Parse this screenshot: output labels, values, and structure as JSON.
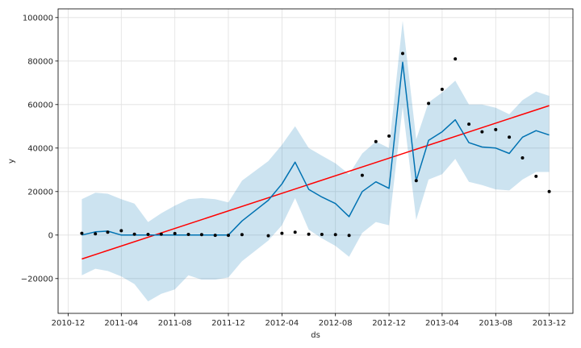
{
  "chart_data": {
    "type": "line",
    "xlabel": "ds",
    "ylabel": "y",
    "x_ticks": [
      "2010-12",
      "2011-04",
      "2011-08",
      "2011-12",
      "2012-04",
      "2012-08",
      "2012-12",
      "2013-04",
      "2013-08",
      "2013-12"
    ],
    "y_ticks": [
      -20000,
      0,
      20000,
      40000,
      60000,
      80000,
      100000
    ],
    "y_tick_labels": [
      "−20000",
      "0",
      "20000",
      "40000",
      "60000",
      "80000",
      "100000"
    ],
    "xlim": [
      "2010-11-08",
      "2014-01-24"
    ],
    "ylim": [
      -36000,
      104000
    ],
    "grid": true,
    "colors": {
      "observed": "#000000",
      "forecast": "#0072b2",
      "interval": "#0072b2",
      "trend": "#ff0000"
    },
    "observed": [
      [
        "2011-01-01",
        800
      ],
      [
        "2011-02-01",
        600
      ],
      [
        "2011-03-01",
        1300
      ],
      [
        "2011-04-01",
        2000
      ],
      [
        "2011-05-01",
        400
      ],
      [
        "2011-06-01",
        300
      ],
      [
        "2011-07-01",
        400
      ],
      [
        "2011-08-01",
        700
      ],
      [
        "2011-09-01",
        300
      ],
      [
        "2011-10-01",
        200
      ],
      [
        "2011-11-01",
        -100
      ],
      [
        "2011-12-01",
        -100
      ],
      [
        "2012-01-01",
        200
      ],
      [
        "2012-03-01",
        -300
      ],
      [
        "2012-04-01",
        800
      ],
      [
        "2012-05-01",
        1300
      ],
      [
        "2012-06-01",
        400
      ],
      [
        "2012-07-01",
        300
      ],
      [
        "2012-08-01",
        200
      ],
      [
        "2012-09-01",
        -200
      ],
      [
        "2012-10-01",
        27500
      ],
      [
        "2012-11-01",
        43000
      ],
      [
        "2012-12-01",
        45500
      ],
      [
        "2013-01-01",
        83500
      ],
      [
        "2013-02-01",
        25000
      ],
      [
        "2013-03-01",
        60500
      ],
      [
        "2013-04-01",
        67000
      ],
      [
        "2013-05-01",
        81000
      ],
      [
        "2013-06-01",
        51000
      ],
      [
        "2013-07-01",
        47500
      ],
      [
        "2013-08-01",
        48500
      ],
      [
        "2013-09-01",
        45000
      ],
      [
        "2013-10-01",
        35500
      ],
      [
        "2013-11-01",
        27000
      ],
      [
        "2013-12-01",
        20000
      ]
    ],
    "forecast": [
      [
        "2011-01-01",
        0
      ],
      [
        "2011-02-01",
        1500
      ],
      [
        "2011-03-01",
        1800
      ],
      [
        "2011-04-01",
        0
      ],
      [
        "2011-05-01",
        0
      ],
      [
        "2011-06-01",
        0
      ],
      [
        "2011-07-01",
        0
      ],
      [
        "2011-08-01",
        0
      ],
      [
        "2011-09-01",
        0
      ],
      [
        "2011-10-01",
        0
      ],
      [
        "2011-11-01",
        0
      ],
      [
        "2011-12-01",
        0
      ],
      [
        "2012-01-01",
        6500
      ],
      [
        "2012-03-01",
        16000
      ],
      [
        "2012-04-01",
        23500
      ],
      [
        "2012-05-01",
        33500
      ],
      [
        "2012-06-01",
        21000
      ],
      [
        "2012-07-01",
        17500
      ],
      [
        "2012-08-01",
        14500
      ],
      [
        "2012-09-01",
        8500
      ],
      [
        "2012-10-01",
        20000
      ],
      [
        "2012-11-01",
        24500
      ],
      [
        "2012-12-01",
        21500
      ],
      [
        "2013-01-01",
        79500
      ],
      [
        "2013-02-01",
        25000
      ],
      [
        "2013-03-01",
        43500
      ],
      [
        "2013-04-01",
        47500
      ],
      [
        "2013-05-01",
        53000
      ],
      [
        "2013-06-01",
        42500
      ],
      [
        "2013-07-01",
        40500
      ],
      [
        "2013-08-01",
        40000
      ],
      [
        "2013-09-01",
        37500
      ],
      [
        "2013-10-01",
        45000
      ],
      [
        "2013-11-01",
        48000
      ],
      [
        "2013-12-01",
        46000
      ]
    ],
    "interval_upper": [
      [
        "2011-01-01",
        16500
      ],
      [
        "2011-02-01",
        19500
      ],
      [
        "2011-03-01",
        19000
      ],
      [
        "2011-04-01",
        16500
      ],
      [
        "2011-05-01",
        14500
      ],
      [
        "2011-06-01",
        6000
      ],
      [
        "2011-07-01",
        10000
      ],
      [
        "2011-08-01",
        13500
      ],
      [
        "2011-09-01",
        16500
      ],
      [
        "2011-10-01",
        17000
      ],
      [
        "2011-11-01",
        16500
      ],
      [
        "2011-12-01",
        15000
      ],
      [
        "2012-01-01",
        25000
      ],
      [
        "2012-03-01",
        34000
      ],
      [
        "2012-04-01",
        41500
      ],
      [
        "2012-05-01",
        50000
      ],
      [
        "2012-06-01",
        40000
      ],
      [
        "2012-07-01",
        36500
      ],
      [
        "2012-08-01",
        33000
      ],
      [
        "2012-09-01",
        28000
      ],
      [
        "2012-10-01",
        37500
      ],
      [
        "2012-11-01",
        43000
      ],
      [
        "2012-12-01",
        40000
      ],
      [
        "2013-01-01",
        98500
      ],
      [
        "2013-02-01",
        44000
      ],
      [
        "2013-03-01",
        61000
      ],
      [
        "2013-04-01",
        65500
      ],
      [
        "2013-05-01",
        71000
      ],
      [
        "2013-06-01",
        60000
      ],
      [
        "2013-07-01",
        60000
      ],
      [
        "2013-08-01",
        58500
      ],
      [
        "2013-09-01",
        55500
      ],
      [
        "2013-10-01",
        62000
      ],
      [
        "2013-11-01",
        66000
      ],
      [
        "2013-12-01",
        64000
      ]
    ],
    "interval_lower": [
      [
        "2011-01-01",
        -18500
      ],
      [
        "2011-02-01",
        -15500
      ],
      [
        "2011-03-01",
        -16500
      ],
      [
        "2011-04-01",
        -19000
      ],
      [
        "2011-05-01",
        -22500
      ],
      [
        "2011-06-01",
        -30500
      ],
      [
        "2011-07-01",
        -27000
      ],
      [
        "2011-08-01",
        -25000
      ],
      [
        "2011-09-01",
        -18500
      ],
      [
        "2011-10-01",
        -20500
      ],
      [
        "2011-11-01",
        -20500
      ],
      [
        "2011-12-01",
        -19500
      ],
      [
        "2012-01-01",
        -12000
      ],
      [
        "2012-03-01",
        -2500
      ],
      [
        "2012-04-01",
        4500
      ],
      [
        "2012-05-01",
        17000
      ],
      [
        "2012-06-01",
        2500
      ],
      [
        "2012-07-01",
        -1500
      ],
      [
        "2012-08-01",
        -5000
      ],
      [
        "2012-09-01",
        -10000
      ],
      [
        "2012-10-01",
        1000
      ],
      [
        "2012-11-01",
        6000
      ],
      [
        "2012-12-01",
        4500
      ],
      [
        "2013-01-01",
        59000
      ],
      [
        "2013-02-01",
        7000
      ],
      [
        "2013-03-01",
        25500
      ],
      [
        "2013-04-01",
        28000
      ],
      [
        "2013-05-01",
        35000
      ],
      [
        "2013-06-01",
        24500
      ],
      [
        "2013-07-01",
        23000
      ],
      [
        "2013-08-01",
        21000
      ],
      [
        "2013-09-01",
        20500
      ],
      [
        "2013-10-01",
        25500
      ],
      [
        "2013-11-01",
        29000
      ],
      [
        "2013-12-01",
        29000
      ]
    ],
    "trend": [
      [
        "2011-01-01",
        -11000
      ],
      [
        "2013-12-01",
        59500
      ]
    ]
  }
}
